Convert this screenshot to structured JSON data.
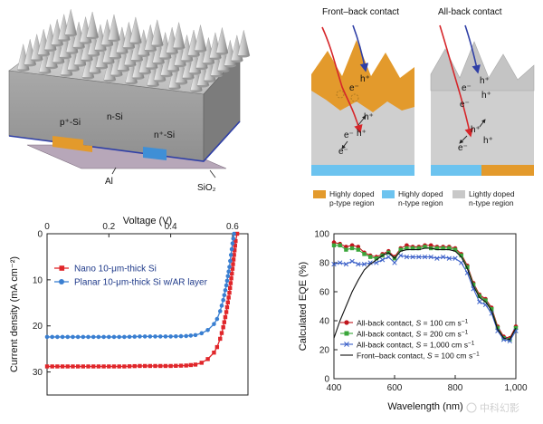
{
  "device_schematic": {
    "labels": {
      "p_si": "p⁺-Si",
      "n_si": "n-Si",
      "n_plus_si": "n⁺-Si",
      "al": "Al",
      "sio2": "SiO₂"
    }
  },
  "contact_diagram": {
    "titles": [
      "Front–back contact",
      "All-back contact"
    ],
    "carriers": {
      "electron": "e⁻",
      "hole": "h⁺"
    },
    "legend": [
      {
        "label": "Highly doped p-type region",
        "line1": "Highly doped",
        "line2": "p-type region",
        "color": "#e39a2c"
      },
      {
        "label": "Highly doped n-type region",
        "line1": "Highly doped",
        "line2": "n-type region",
        "color": "#6cc3ef"
      },
      {
        "label": "Lightly doped n-type region",
        "line1": "Lightly doped",
        "line2": "n-type region",
        "color": "#c8c8c8"
      }
    ]
  },
  "chart_data": [
    {
      "type": "line",
      "xlabel": "Voltage (V)",
      "ylabel": "Current density (mA cm⁻²)",
      "xlim": [
        0,
        0.65
      ],
      "ylim": [
        0,
        35
      ],
      "y_inverted": true,
      "x_axis_position": "top",
      "x_ticks": [
        0,
        0.2,
        0.4,
        0.6
      ],
      "x_tick_labels": [
        "0",
        "0.2",
        "0.4",
        "0.6"
      ],
      "y_ticks": [
        0,
        10,
        20,
        30
      ],
      "y_tick_labels": [
        "0",
        "10",
        "20",
        "30"
      ],
      "legend_position": "top-left",
      "series": [
        {
          "name": "Nano 10-μm-thick Si",
          "color": "#e0262a",
          "marker": "square",
          "x": [
            0.0,
            0.05,
            0.1,
            0.15,
            0.2,
            0.25,
            0.3,
            0.35,
            0.4,
            0.45,
            0.48,
            0.5,
            0.52,
            0.54,
            0.55,
            0.56,
            0.57,
            0.58,
            0.59,
            0.6,
            0.605,
            0.61,
            0.615
          ],
          "y": [
            28.8,
            28.8,
            28.8,
            28.8,
            28.8,
            28.8,
            28.7,
            28.7,
            28.7,
            28.6,
            28.4,
            28.0,
            27.2,
            25.8,
            24.6,
            22.8,
            20.3,
            17.0,
            12.8,
            7.6,
            4.6,
            1.6,
            0.0
          ]
        },
        {
          "name": "Planar 10-μm-thick Si w/AR layer",
          "color": "#3a7fd1",
          "marker": "circle",
          "x": [
            0.0,
            0.05,
            0.1,
            0.15,
            0.2,
            0.25,
            0.3,
            0.35,
            0.4,
            0.45,
            0.48,
            0.5,
            0.52,
            0.54,
            0.55,
            0.56,
            0.57,
            0.58,
            0.59,
            0.595,
            0.6,
            0.605
          ],
          "y": [
            22.4,
            22.4,
            22.4,
            22.4,
            22.4,
            22.4,
            22.3,
            22.3,
            22.3,
            22.2,
            22.0,
            21.6,
            20.9,
            19.6,
            18.5,
            16.8,
            14.4,
            11.2,
            7.2,
            4.6,
            2.1,
            0.0
          ]
        }
      ]
    },
    {
      "type": "line",
      "xlabel": "Wavelength (nm)",
      "ylabel": "Calculated EQE (%)",
      "xlim": [
        400,
        1000
      ],
      "ylim": [
        0,
        100
      ],
      "x_ticks": [
        400,
        600,
        800,
        1000
      ],
      "x_tick_labels": [
        "400",
        "600",
        "800",
        "1,000"
      ],
      "y_ticks": [
        0,
        20,
        40,
        60,
        80,
        100
      ],
      "y_tick_labels": [
        "0",
        "20",
        "40",
        "60",
        "80",
        "100"
      ],
      "legend_position": "bottom-left",
      "series": [
        {
          "name": "All-back contact, S = 100 cm s⁻¹",
          "name_prefix": "All-back contact, ",
          "name_s": "S",
          "name_value": " = 100 cm s",
          "name_exp": "−1",
          "color": "#c0141c",
          "marker": "circle",
          "x": [
            400,
            420,
            440,
            460,
            480,
            500,
            520,
            540,
            560,
            580,
            600,
            620,
            640,
            660,
            680,
            700,
            720,
            740,
            760,
            780,
            800,
            820,
            840,
            860,
            880,
            900,
            920,
            940,
            960,
            980,
            1000
          ],
          "y": [
            94,
            93,
            91,
            92,
            91,
            87,
            85,
            84,
            86,
            88,
            84,
            90,
            92,
            91,
            91,
            92,
            92,
            91,
            91,
            91,
            90,
            86,
            78,
            66,
            58,
            55,
            49,
            36,
            29,
            28,
            36
          ]
        },
        {
          "name": "All-back contact, S = 200 cm s⁻¹",
          "name_prefix": "All-back contact, ",
          "name_s": "S",
          "name_value": " = 200 cm s",
          "name_exp": "−1",
          "color": "#3aa63a",
          "marker": "square",
          "x": [
            400,
            420,
            440,
            460,
            480,
            500,
            520,
            540,
            560,
            580,
            600,
            620,
            640,
            660,
            680,
            700,
            720,
            740,
            760,
            780,
            800,
            820,
            840,
            860,
            880,
            900,
            920,
            940,
            960,
            980,
            1000
          ],
          "y": [
            92,
            92,
            89,
            90,
            89,
            86,
            84,
            83,
            85,
            87,
            83,
            89,
            90,
            90,
            90,
            91,
            90,
            90,
            90,
            90,
            89,
            85,
            77,
            65,
            57,
            54,
            48,
            35,
            28,
            27,
            35
          ]
        },
        {
          "name": "All-back contact, S = 1,000 cm s⁻¹",
          "name_prefix": "All-back contact, ",
          "name_s": "S",
          "name_value": " = 1,000 cm s",
          "name_exp": "−1",
          "color": "#3a5fc8",
          "marker": "x",
          "x": [
            400,
            420,
            440,
            460,
            480,
            500,
            520,
            540,
            560,
            580,
            600,
            620,
            640,
            660,
            680,
            700,
            720,
            740,
            760,
            780,
            800,
            820,
            840,
            860,
            880,
            900,
            920,
            940,
            960,
            980,
            1000
          ],
          "y": [
            79,
            80,
            79,
            81,
            79,
            79,
            80,
            80,
            82,
            84,
            80,
            85,
            84,
            84,
            84,
            84,
            84,
            83,
            84,
            83,
            83,
            80,
            73,
            62,
            53,
            51,
            45,
            33,
            27,
            26,
            33
          ]
        },
        {
          "name": "Front–back contact, S = 100 cm s⁻¹",
          "name_prefix": "Front–back contact, ",
          "name_s": "S",
          "name_value": " = 100 cm s",
          "name_exp": "−1",
          "color": "#111111",
          "marker": "none",
          "x": [
            400,
            420,
            440,
            460,
            480,
            500,
            520,
            540,
            560,
            580,
            600,
            620,
            640,
            660,
            680,
            700,
            720,
            740,
            760,
            780,
            800,
            820,
            840,
            860,
            880,
            900,
            920,
            940,
            960,
            980,
            1000
          ],
          "y": [
            28,
            40,
            50,
            60,
            68,
            75,
            79,
            82,
            85,
            87,
            83,
            88,
            89,
            89,
            89,
            90,
            90,
            89,
            89,
            89,
            88,
            84,
            76,
            64,
            56,
            53,
            47,
            34,
            28,
            27,
            35
          ]
        }
      ]
    }
  ],
  "watermark": "中科幻影"
}
